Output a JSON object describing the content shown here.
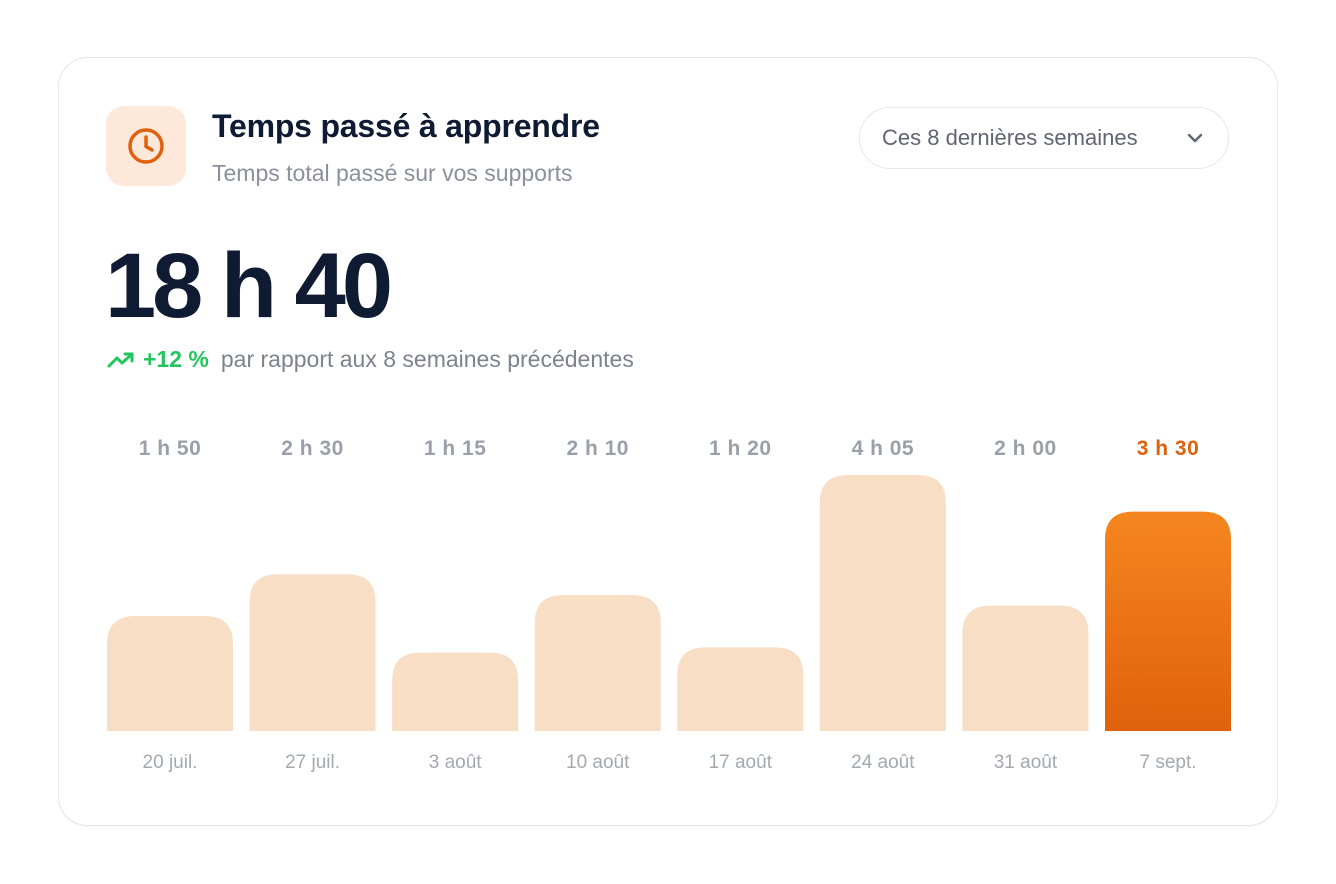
{
  "header": {
    "icon": "clock-icon",
    "title": "Temps passé à apprendre",
    "subtitle": "Temps total passé sur vos supports"
  },
  "period_select": {
    "label": "Ces 8 dernières semaines",
    "icon": "chevron-down-icon"
  },
  "summary": {
    "total": "18 h 40",
    "change_icon": "trend-up-icon",
    "change_value": "+12 %",
    "change_text": "par rapport aux 8 semaines précédentes"
  },
  "colors": {
    "accent": "#e0610c",
    "accent_light": "#f5861f",
    "bar": "#f9dec6",
    "positive": "#22c55e",
    "title": "#0f1b33"
  },
  "chart_data": {
    "type": "bar",
    "categories": [
      "20 juil.",
      "27 juil.",
      "3 août",
      "10 août",
      "17 août",
      "24 août",
      "31 août",
      "7 sept."
    ],
    "values": [
      110,
      150,
      75,
      130,
      80,
      245,
      120,
      210
    ],
    "value_labels": [
      "1 h 50",
      "2 h 30",
      "1 h 15",
      "2 h 10",
      "1 h 20",
      "4 h 05",
      "2 h 00",
      "3 h 30"
    ],
    "highlight_index": 7,
    "ylim": [
      0,
      245
    ],
    "grid": false
  }
}
